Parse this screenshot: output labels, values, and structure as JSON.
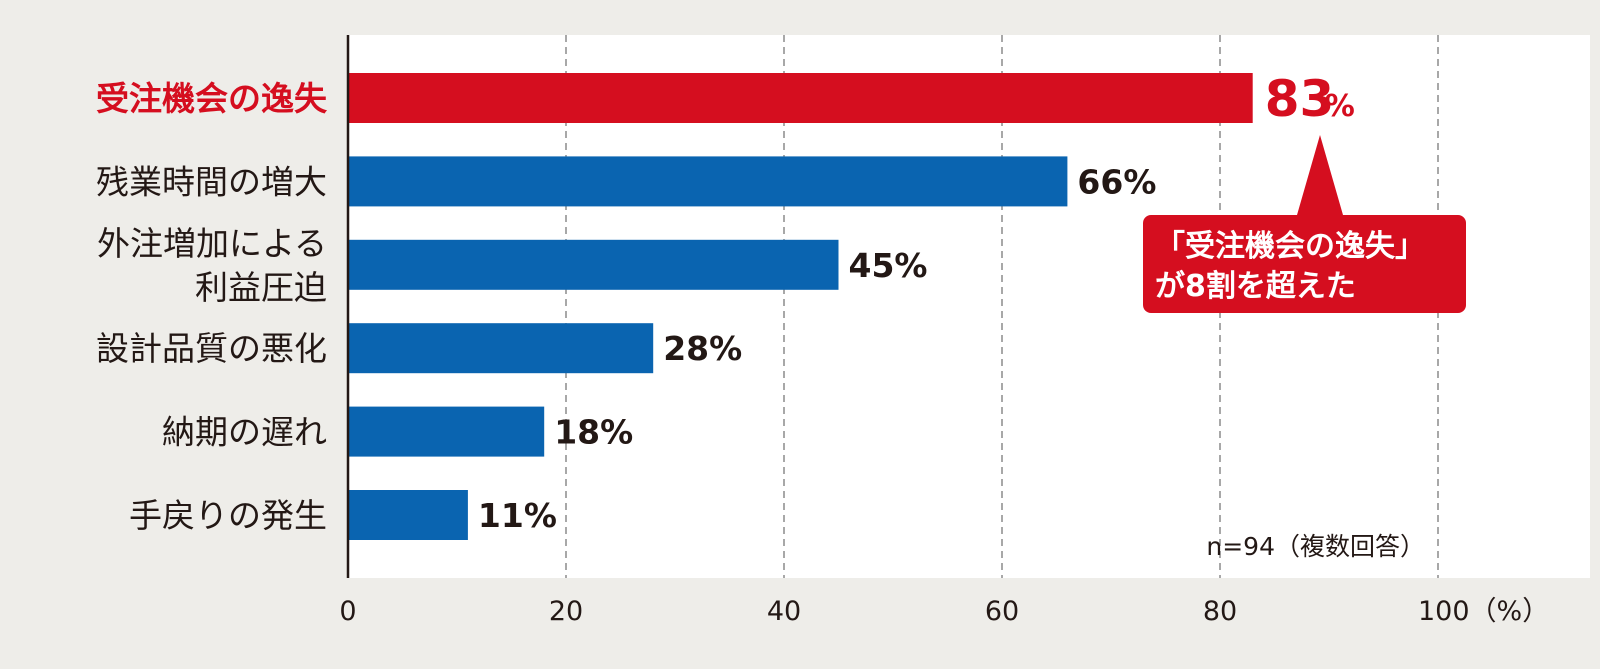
{
  "chart_data": {
    "type": "bar",
    "orientation": "horizontal",
    "categories": [
      [
        "受注機会の逸失"
      ],
      [
        "残業時間の増大"
      ],
      [
        "外注増加による",
        "利益圧迫"
      ],
      [
        "設計品質の悪化"
      ],
      [
        "納期の遅れ"
      ],
      [
        "手戻りの発生"
      ]
    ],
    "values": [
      83,
      66,
      45,
      28,
      18,
      11
    ],
    "value_labels": [
      "83",
      "66%",
      "45%",
      "28%",
      "18%",
      "11%"
    ],
    "highlight_unit": "%",
    "highlight_index": 0,
    "xlim": [
      0,
      100
    ],
    "xticks": [
      "0",
      "20",
      "40",
      "60",
      "80",
      "100（%）"
    ],
    "tick_values": [
      0,
      20,
      40,
      60,
      80,
      100
    ],
    "grid": "vertical-dashed",
    "note": "n=94（複数回答）",
    "callout": [
      "「受注機会の逸失」",
      "が8割を超えた"
    ]
  },
  "colors": {
    "bar": "#0a64b0",
    "highlight": "#d50e1f",
    "background": "#eeede9",
    "plot_background": "#ffffff",
    "text": "#231815",
    "grid": "#8c8c8c"
  }
}
